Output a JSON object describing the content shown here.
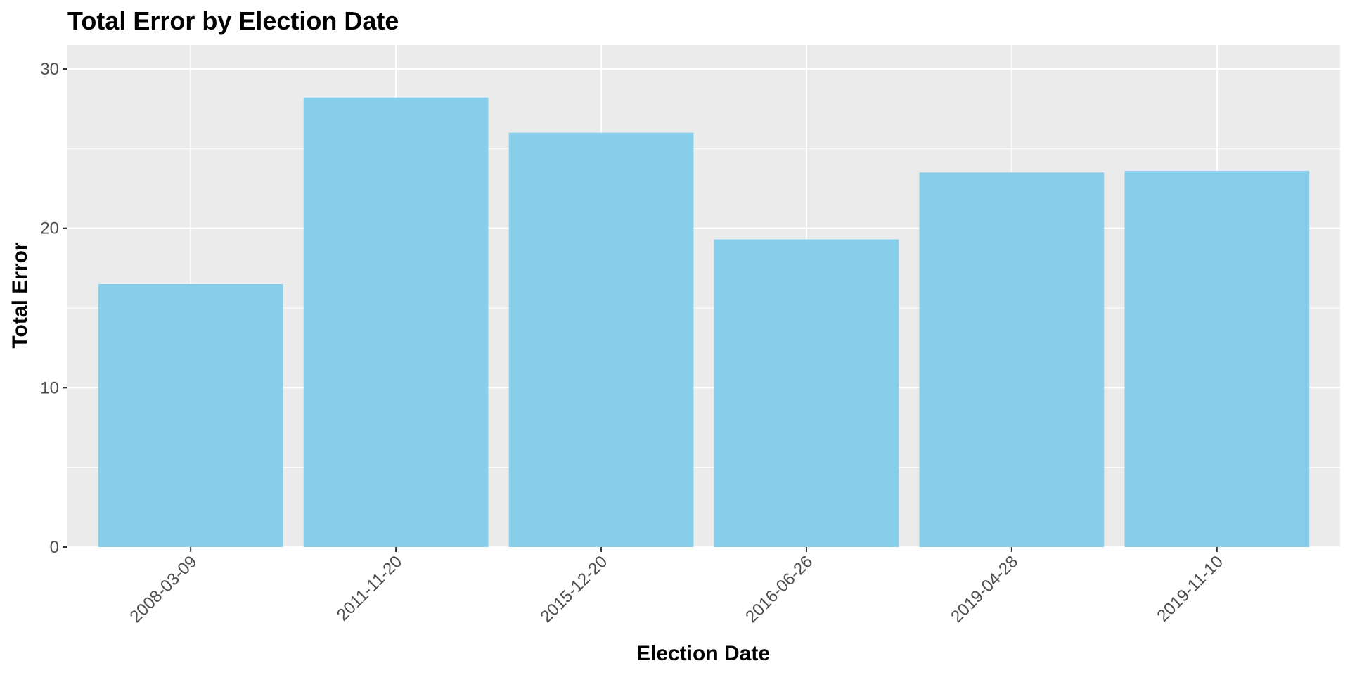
{
  "chart_data": {
    "type": "bar",
    "title": "Total Error by Election Date",
    "xlabel": "Election Date",
    "ylabel": "Total Error",
    "categories": [
      "2008-03-09",
      "2011-11-20",
      "2015-12-20",
      "2016-06-26",
      "2019-04-28",
      "2019-11-10"
    ],
    "values": [
      16.5,
      28.2,
      26.0,
      19.3,
      23.5,
      23.6
    ],
    "ylim": [
      0,
      30
    ],
    "yticks": [
      0,
      10,
      20,
      30
    ],
    "ytick_labels": [
      "0",
      "10",
      "20",
      "30"
    ],
    "grid": true,
    "legend": "none",
    "colors": {
      "bar": "#87CEEB",
      "panel_background": "#EBEBEB",
      "grid": "#FFFFFF",
      "tick": "#333333"
    }
  }
}
